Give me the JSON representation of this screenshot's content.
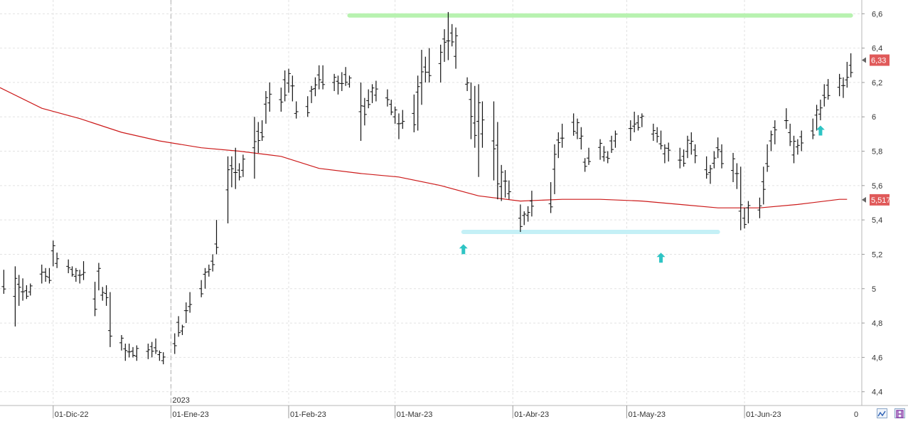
{
  "chart_data": {
    "type": "ohlc",
    "y_axis": {
      "side": "right",
      "min": 4.32,
      "max": 6.68,
      "ticks": [
        "6,6",
        "6,4",
        "6,2",
        "6",
        "5,8",
        "5,6",
        "5,4",
        "5,2",
        "5",
        "4,8",
        "4,6",
        "4,4"
      ],
      "tick_values": [
        6.6,
        6.4,
        6.2,
        6.0,
        5.8,
        5.6,
        5.4,
        5.2,
        5.0,
        4.8,
        4.6,
        4.4
      ]
    },
    "x_axis": {
      "labels": [
        {
          "date": "2022-12-01",
          "label": "01-Dic-22"
        },
        {
          "date": "2023-01-01",
          "label": "01-Ene-23",
          "year": "2023"
        },
        {
          "date": "2023-02-01",
          "label": "01-Feb-23"
        },
        {
          "date": "2023-03-01",
          "label": "01-Mar-23"
        },
        {
          "date": "2023-04-01",
          "label": "01-Abr-23"
        },
        {
          "date": "2023-05-01",
          "label": "01-May-23"
        },
        {
          "date": "2023-06-01",
          "label": "01-Jun-23"
        }
      ],
      "end_label": "0",
      "range_start": "2022-11-17",
      "range_end": "2023-06-30"
    },
    "last_price": {
      "value": 6.33,
      "label": "6,33",
      "color": "#e05a5a"
    },
    "moving_average": {
      "value": 5.517,
      "label": "5,517",
      "color": "#cc1a1a",
      "points": [
        [
          "2022-11-17",
          6.17
        ],
        [
          "2022-11-28",
          6.05
        ],
        [
          "2022-12-08",
          5.99
        ],
        [
          "2022-12-19",
          5.91
        ],
        [
          "2022-12-29",
          5.86
        ],
        [
          "2023-01-09",
          5.82
        ],
        [
          "2023-01-19",
          5.8
        ],
        [
          "2023-01-30",
          5.77
        ],
        [
          "2023-02-09",
          5.7
        ],
        [
          "2023-02-20",
          5.67
        ],
        [
          "2023-03-02",
          5.65
        ],
        [
          "2023-03-13",
          5.6
        ],
        [
          "2023-03-23",
          5.54
        ],
        [
          "2023-04-03",
          5.51
        ],
        [
          "2023-04-14",
          5.52
        ],
        [
          "2023-04-24",
          5.52
        ],
        [
          "2023-05-05",
          5.51
        ],
        [
          "2023-05-15",
          5.49
        ],
        [
          "2023-05-25",
          5.47
        ],
        [
          "2023-06-05",
          5.47
        ],
        [
          "2023-06-15",
          5.49
        ],
        [
          "2023-06-26",
          5.52
        ],
        [
          "2023-06-28",
          5.52
        ]
      ]
    },
    "resistance_line": {
      "value": 6.59,
      "from": "2023-02-17",
      "to": "2023-06-29",
      "color": "#b8f2b0"
    },
    "support_line": {
      "value": 5.33,
      "from": "2023-03-19",
      "to": "2023-05-25",
      "color": "#c4f0f6"
    },
    "markers": [
      {
        "date": "2023-03-19",
        "value": 5.23,
        "shape": "up-arrow",
        "color": "#2ec4c4"
      },
      {
        "date": "2023-05-10",
        "value": 5.18,
        "shape": "up-arrow",
        "color": "#2ec4c4"
      },
      {
        "date": "2023-06-21",
        "value": 5.92,
        "shape": "up-arrow",
        "color": "#2ec4c4"
      }
    ],
    "bars": [
      [
        "2022-11-18",
        5.11,
        4.97
      ],
      [
        "2022-11-21",
        5.13,
        4.78
      ],
      [
        "2022-11-22",
        5.08,
        4.9
      ],
      [
        "2022-11-23",
        5.06,
        4.93
      ],
      [
        "2022-11-24",
        5.02,
        4.94
      ],
      [
        "2022-11-25",
        5.03,
        4.96
      ],
      [
        "2022-11-28",
        5.14,
        5.03
      ],
      [
        "2022-11-29",
        5.12,
        5.04
      ],
      [
        "2022-11-30",
        5.12,
        5.03
      ],
      [
        "2022-12-01",
        5.28,
        5.13
      ],
      [
        "2022-12-02",
        5.21,
        5.12
      ],
      [
        "2022-12-05",
        5.17,
        5.09
      ],
      [
        "2022-12-06",
        5.13,
        5.07
      ],
      [
        "2022-12-07",
        5.12,
        5.04
      ],
      [
        "2022-12-08",
        5.11,
        5.03
      ],
      [
        "2022-12-09",
        5.16,
        5.05
      ],
      [
        "2022-12-12",
        5.04,
        4.84
      ],
      [
        "2022-12-13",
        5.15,
        4.99
      ],
      [
        "2022-12-14",
        5.01,
        4.93
      ],
      [
        "2022-12-15",
        5.02,
        4.9
      ],
      [
        "2022-12-16",
        4.98,
        4.66
      ],
      [
        "2022-12-19",
        4.73,
        4.64
      ],
      [
        "2022-12-20",
        4.68,
        4.58
      ],
      [
        "2022-12-21",
        4.68,
        4.6
      ],
      [
        "2022-12-22",
        4.66,
        4.6
      ],
      [
        "2022-12-23",
        4.67,
        4.58
      ],
      [
        "2022-12-26",
        4.68,
        4.59
      ],
      [
        "2022-12-27",
        4.69,
        4.6
      ],
      [
        "2022-12-28",
        4.71,
        4.62
      ],
      [
        "2022-12-29",
        4.64,
        4.58
      ],
      [
        "2022-12-30",
        4.63,
        4.56
      ],
      [
        "2023-01-02",
        4.74,
        4.62
      ],
      [
        "2023-01-03",
        4.84,
        4.72
      ],
      [
        "2023-01-04",
        4.79,
        4.73
      ],
      [
        "2023-01-05",
        4.92,
        4.8
      ],
      [
        "2023-01-06",
        4.98,
        4.86
      ],
      [
        "2023-01-09",
        5.05,
        4.95
      ],
      [
        "2023-01-10",
        5.12,
        5.0
      ],
      [
        "2023-01-11",
        5.14,
        5.07
      ],
      [
        "2023-01-12",
        5.2,
        5.1
      ],
      [
        "2023-01-13",
        5.4,
        5.2
      ],
      [
        "2023-01-16",
        5.77,
        5.38
      ],
      [
        "2023-01-17",
        5.77,
        5.59
      ],
      [
        "2023-01-18",
        5.82,
        5.58
      ],
      [
        "2023-01-19",
        5.73,
        5.63
      ],
      [
        "2023-01-20",
        5.78,
        5.65
      ],
      [
        "2023-01-23",
        6.0,
        5.64
      ],
      [
        "2023-01-24",
        5.97,
        5.79
      ],
      [
        "2023-01-25",
        5.98,
        5.86
      ],
      [
        "2023-01-26",
        6.15,
        5.96
      ],
      [
        "2023-01-27",
        6.2,
        6.03
      ],
      [
        "2023-01-30",
        6.17,
        6.03
      ],
      [
        "2023-01-31",
        6.27,
        6.09
      ],
      [
        "2023-02-01",
        6.28,
        6.14
      ],
      [
        "2023-02-02",
        6.24,
        6.09
      ],
      [
        "2023-02-03",
        6.09,
        5.99
      ],
      [
        "2023-02-06",
        6.12,
        6.0
      ],
      [
        "2023-02-07",
        6.18,
        6.08
      ],
      [
        "2023-02-08",
        6.23,
        6.12
      ],
      [
        "2023-02-09",
        6.3,
        6.16
      ],
      [
        "2023-02-10",
        6.3,
        6.16
      ],
      [
        "2023-02-13",
        6.25,
        6.15
      ],
      [
        "2023-02-14",
        6.24,
        6.13
      ],
      [
        "2023-02-15",
        6.26,
        6.15
      ],
      [
        "2023-02-16",
        6.29,
        6.18
      ],
      [
        "2023-02-17",
        6.24,
        6.17
      ],
      [
        "2023-02-20",
        6.2,
        5.86
      ],
      [
        "2023-02-21",
        6.11,
        5.95
      ],
      [
        "2023-02-22",
        6.16,
        6.05
      ],
      [
        "2023-02-23",
        6.19,
        6.08
      ],
      [
        "2023-02-24",
        6.21,
        6.09
      ],
      [
        "2023-02-27",
        6.16,
        6.06
      ],
      [
        "2023-02-28",
        6.1,
        6.01
      ],
      [
        "2023-03-01",
        6.06,
        5.96
      ],
      [
        "2023-03-02",
        6.02,
        5.87
      ],
      [
        "2023-03-03",
        6.04,
        5.93
      ],
      [
        "2023-03-06",
        6.13,
        5.91
      ],
      [
        "2023-03-07",
        6.24,
        5.92
      ],
      [
        "2023-03-08",
        6.39,
        6.07
      ],
      [
        "2023-03-09",
        6.35,
        6.2
      ],
      [
        "2023-03-10",
        6.4,
        6.2
      ],
      [
        "2023-03-13",
        6.42,
        6.2
      ],
      [
        "2023-03-14",
        6.51,
        6.32
      ],
      [
        "2023-03-15",
        6.61,
        6.33
      ],
      [
        "2023-03-16",
        6.54,
        6.41
      ],
      [
        "2023-03-17",
        6.52,
        6.28
      ],
      [
        "2023-03-20",
        6.23,
        6.15
      ],
      [
        "2023-03-21",
        6.2,
        5.87
      ],
      [
        "2023-03-22",
        6.18,
        5.82
      ],
      [
        "2023-03-23",
        6.19,
        5.65
      ],
      [
        "2023-03-24",
        6.09,
        5.82
      ],
      [
        "2023-03-27",
        6.09,
        5.63
      ],
      [
        "2023-03-28",
        5.97,
        5.52
      ],
      [
        "2023-03-29",
        5.72,
        5.51
      ],
      [
        "2023-03-30",
        5.69,
        5.53
      ],
      [
        "2023-03-31",
        5.63,
        5.52
      ],
      [
        "2023-04-03",
        5.49,
        5.33
      ],
      [
        "2023-04-04",
        5.45,
        5.37
      ],
      [
        "2023-04-05",
        5.48,
        5.39
      ],
      [
        "2023-04-06",
        5.57,
        5.42
      ],
      [
        "2023-04-11",
        5.62,
        5.44
      ],
      [
        "2023-04-12",
        5.84,
        5.55
      ],
      [
        "2023-04-13",
        5.91,
        5.76
      ],
      [
        "2023-04-14",
        5.96,
        5.82
      ],
      [
        "2023-04-17",
        6.02,
        5.89
      ],
      [
        "2023-04-18",
        5.99,
        5.87
      ],
      [
        "2023-04-19",
        5.94,
        5.81
      ],
      [
        "2023-04-20",
        5.76,
        5.68
      ],
      [
        "2023-04-21",
        5.82,
        5.72
      ],
      [
        "2023-04-24",
        5.87,
        5.75
      ],
      [
        "2023-04-25",
        5.83,
        5.74
      ],
      [
        "2023-04-26",
        5.8,
        5.73
      ],
      [
        "2023-04-27",
        5.89,
        5.79
      ],
      [
        "2023-04-28",
        5.92,
        5.82
      ],
      [
        "2023-05-02",
        5.98,
        5.86
      ],
      [
        "2023-05-03",
        6.03,
        5.91
      ],
      [
        "2023-05-04",
        6.01,
        5.92
      ],
      [
        "2023-05-05",
        6.02,
        5.94
      ],
      [
        "2023-05-08",
        5.96,
        5.86
      ],
      [
        "2023-05-09",
        5.94,
        5.85
      ],
      [
        "2023-05-10",
        5.92,
        5.81
      ],
      [
        "2023-05-11",
        5.84,
        5.73
      ],
      [
        "2023-05-12",
        5.85,
        5.74
      ],
      [
        "2023-05-15",
        5.82,
        5.7
      ],
      [
        "2023-05-16",
        5.81,
        5.71
      ],
      [
        "2023-05-17",
        5.89,
        5.76
      ],
      [
        "2023-05-18",
        5.91,
        5.78
      ],
      [
        "2023-05-19",
        5.84,
        5.73
      ],
      [
        "2023-05-22",
        5.77,
        5.64
      ],
      [
        "2023-05-23",
        5.72,
        5.61
      ],
      [
        "2023-05-24",
        5.8,
        5.7
      ],
      [
        "2023-05-25",
        5.88,
        5.76
      ],
      [
        "2023-05-26",
        5.84,
        5.7
      ],
      [
        "2023-05-29",
        5.79,
        5.62
      ],
      [
        "2023-05-30",
        5.73,
        5.58
      ],
      [
        "2023-05-31",
        5.71,
        5.34
      ],
      [
        "2023-06-01",
        5.47,
        5.35
      ],
      [
        "2023-06-02",
        5.51,
        5.38
      ],
      [
        "2023-06-05",
        5.53,
        5.41
      ],
      [
        "2023-06-06",
        5.71,
        5.49
      ],
      [
        "2023-06-07",
        5.84,
        5.68
      ],
      [
        "2023-06-08",
        5.92,
        5.8
      ],
      [
        "2023-06-09",
        5.98,
        5.84
      ],
      [
        "2023-06-12",
        6.05,
        5.93
      ],
      [
        "2023-06-13",
        5.96,
        5.83
      ],
      [
        "2023-06-14",
        5.89,
        5.73
      ],
      [
        "2023-06-15",
        5.87,
        5.78
      ],
      [
        "2023-06-16",
        5.92,
        5.8
      ],
      [
        "2023-06-19",
        5.99,
        5.87
      ],
      [
        "2023-06-20",
        6.07,
        5.92
      ],
      [
        "2023-06-21",
        6.1,
        5.98
      ],
      [
        "2023-06-22",
        6.19,
        6.06
      ],
      [
        "2023-06-23",
        6.22,
        6.1
      ],
      [
        "2023-06-26",
        6.25,
        6.12
      ],
      [
        "2023-06-27",
        6.23,
        6.11
      ],
      [
        "2023-06-28",
        6.32,
        6.17
      ],
      [
        "2023-06-29",
        6.37,
        6.23
      ]
    ]
  },
  "toolbar": {
    "zoom_icon": "zigzag-icon",
    "save_icon": "floppy-disk-icon"
  }
}
